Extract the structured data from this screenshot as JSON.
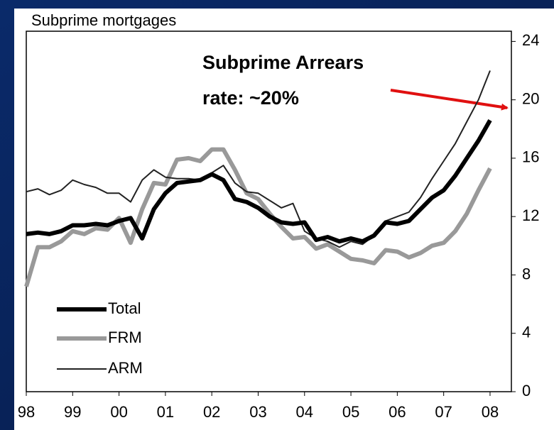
{
  "chart_data": {
    "type": "line",
    "title": "Subprime mortgages",
    "annotation": [
      "Subprime Arrears",
      "rate: ~20%"
    ],
    "x": [
      1998,
      1998.25,
      1998.5,
      1998.75,
      1999,
      1999.25,
      1999.5,
      1999.75,
      2000,
      2000.25,
      2000.5,
      2000.75,
      2001,
      2001.25,
      2001.5,
      2001.75,
      2002,
      2002.25,
      2002.5,
      2002.75,
      2003,
      2003.25,
      2003.5,
      2003.75,
      2004,
      2004.25,
      2004.5,
      2004.75,
      2005,
      2005.25,
      2005.5,
      2005.75,
      2006,
      2006.25,
      2006.5,
      2006.75,
      2007,
      2007.25,
      2007.5,
      2007.75,
      2008
    ],
    "series": [
      {
        "name": "Total",
        "color": "#000000",
        "values": [
          10.8,
          10.9,
          10.8,
          11.0,
          11.4,
          11.4,
          11.5,
          11.4,
          11.7,
          11.9,
          10.5,
          12.5,
          13.6,
          14.3,
          14.4,
          14.5,
          14.9,
          14.5,
          13.2,
          13.0,
          12.6,
          12.0,
          11.6,
          11.5,
          11.6,
          10.4,
          10.6,
          10.3,
          10.5,
          10.3,
          10.7,
          11.6,
          11.5,
          11.7,
          12.5,
          13.3,
          13.8,
          14.8,
          16.0,
          17.2,
          18.6
        ]
      },
      {
        "name": "FRM",
        "color": "#999999",
        "values": [
          7.2,
          9.9,
          9.9,
          10.3,
          11.0,
          10.8,
          11.2,
          11.1,
          11.9,
          10.2,
          12.5,
          14.3,
          14.2,
          15.9,
          16.0,
          15.8,
          16.6,
          16.6,
          15.2,
          13.6,
          13.2,
          12.2,
          11.3,
          10.5,
          10.6,
          9.8,
          10.1,
          9.6,
          9.1,
          9.0,
          8.8,
          9.7,
          9.6,
          9.2,
          9.5,
          10.0,
          10.2,
          11.0,
          12.2,
          13.8,
          15.3
        ]
      },
      {
        "name": "ARM",
        "color": "#222222",
        "values": [
          13.7,
          13.9,
          13.5,
          13.8,
          14.5,
          14.2,
          14.0,
          13.6,
          13.6,
          13.0,
          14.5,
          15.2,
          14.7,
          14.6,
          14.6,
          14.5,
          15.0,
          15.5,
          14.3,
          13.7,
          13.6,
          13.1,
          12.6,
          12.9,
          11.0,
          10.5,
          10.3,
          9.9,
          10.3,
          10.1,
          10.7,
          11.7,
          12.0,
          12.3,
          13.3,
          14.6,
          15.8,
          17.0,
          18.5,
          20.0,
          22.0
        ]
      }
    ],
    "xlim": [
      1998,
      2008.46
    ],
    "xticks": [
      {
        "value": 1998,
        "label": "98"
      },
      {
        "value": 1999,
        "label": "99"
      },
      {
        "value": 2000,
        "label": "00"
      },
      {
        "value": 2001,
        "label": "01"
      },
      {
        "value": 2002,
        "label": "02"
      },
      {
        "value": 2003,
        "label": "03"
      },
      {
        "value": 2004,
        "label": "04"
      },
      {
        "value": 2005,
        "label": "05"
      },
      {
        "value": 2006,
        "label": "06"
      },
      {
        "value": 2007,
        "label": "07"
      },
      {
        "value": 2008,
        "label": "08"
      }
    ],
    "ylim": [
      0,
      24.7
    ],
    "yticks": [
      0,
      4,
      8,
      12,
      16,
      20,
      24
    ],
    "legend": "lower left"
  }
}
